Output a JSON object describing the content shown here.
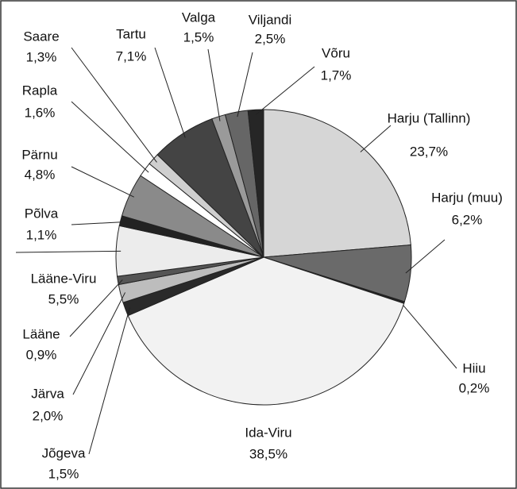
{
  "chart_data": {
    "type": "pie",
    "categories": [
      "Harju (Tallinn)",
      "Harju (muu)",
      "Hiiu",
      "Ida-Viru",
      "Jõgeva",
      "Järva",
      "Lääne",
      "Lääne-Viru",
      "Põlva",
      "Pärnu",
      "Rapla",
      "Saare",
      "Tartu",
      "Valga",
      "Viljandi",
      "Võru"
    ],
    "values": [
      23.7,
      6.2,
      0.2,
      38.5,
      1.5,
      2.0,
      0.9,
      5.5,
      1.1,
      4.8,
      1.6,
      1.3,
      7.1,
      1.5,
      2.5,
      1.7
    ],
    "value_labels": [
      "23,7%",
      "6,2%",
      "0,2%",
      "38,5%",
      "1,5%",
      "2,0%",
      "0,9%",
      "5,5%",
      "1,1%",
      "4,8%",
      "1,6%",
      "1,3%",
      "7,1%",
      "1,5%",
      "2,5%",
      "1,7%"
    ],
    "colors": [
      "#d6d6d6",
      "#6a6a6a",
      "#222222",
      "#f2f2f2",
      "#2a2a2a",
      "#bdbdbd",
      "#555555",
      "#ececec",
      "#222222",
      "#8a8a8a",
      "#ffffff",
      "#cfcfcf",
      "#444444",
      "#9a9a9a",
      "#666666",
      "#262626"
    ]
  }
}
